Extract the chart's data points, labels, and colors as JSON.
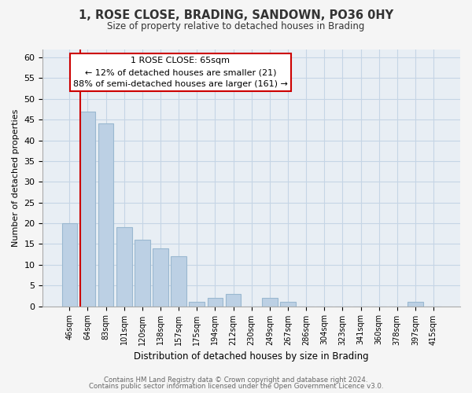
{
  "title": "1, ROSE CLOSE, BRADING, SANDOWN, PO36 0HY",
  "subtitle": "Size of property relative to detached houses in Brading",
  "xlabel": "Distribution of detached houses by size in Brading",
  "ylabel": "Number of detached properties",
  "bar_labels": [
    "46sqm",
    "64sqm",
    "83sqm",
    "101sqm",
    "120sqm",
    "138sqm",
    "157sqm",
    "175sqm",
    "194sqm",
    "212sqm",
    "230sqm",
    "249sqm",
    "267sqm",
    "286sqm",
    "304sqm",
    "323sqm",
    "341sqm",
    "360sqm",
    "378sqm",
    "397sqm",
    "415sqm"
  ],
  "bar_values": [
    20,
    47,
    44,
    19,
    16,
    14,
    12,
    1,
    2,
    3,
    0,
    2,
    1,
    0,
    0,
    0,
    0,
    0,
    0,
    1,
    0
  ],
  "bar_color": "#bcd0e4",
  "bar_edge_color": "#9ab8d0",
  "property_line_color": "#cc0000",
  "property_line_x": 1,
  "annotation_title": "1 ROSE CLOSE: 65sqm",
  "annotation_line1": "← 12% of detached houses are smaller (21)",
  "annotation_line2": "88% of semi-detached houses are larger (161) →",
  "annotation_box_color": "#ffffff",
  "annotation_box_edge": "#cc0000",
  "ylim": [
    0,
    62
  ],
  "yticks": [
    0,
    5,
    10,
    15,
    20,
    25,
    30,
    35,
    40,
    45,
    50,
    55,
    60
  ],
  "footnote1": "Contains HM Land Registry data © Crown copyright and database right 2024.",
  "footnote2": "Contains public sector information licensed under the Open Government Licence v3.0.",
  "bg_color": "#f5f5f5",
  "plot_bg_color": "#e8eef4",
  "grid_color": "#c5d5e5"
}
